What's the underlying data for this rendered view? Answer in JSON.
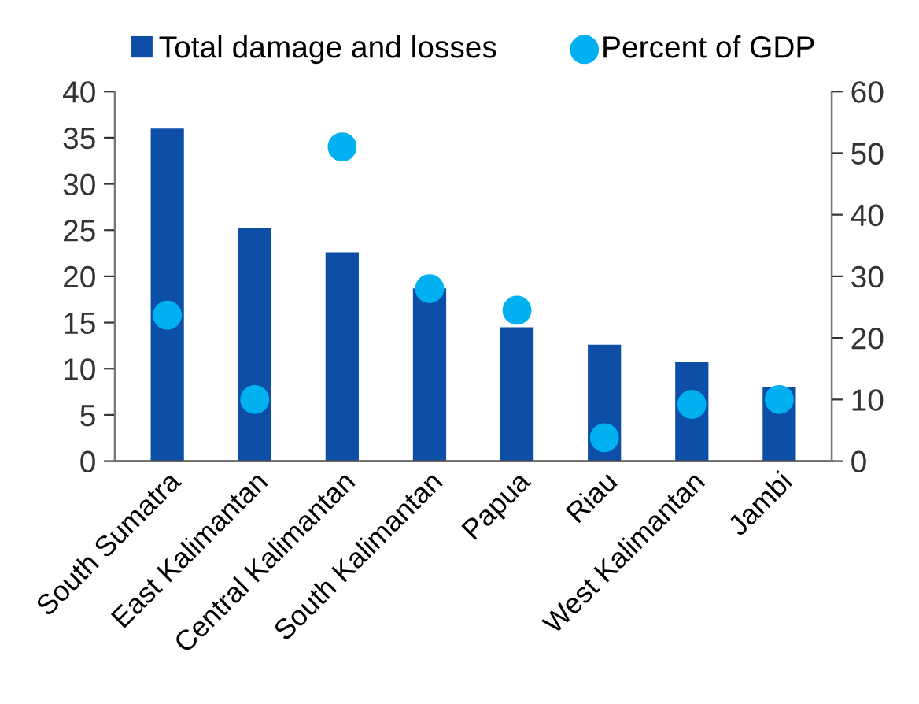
{
  "chart_data": {
    "type": "bar",
    "categories": [
      "South Sumatra",
      "East Kalimantan",
      "Central Kalimantan",
      "South Kalimantan",
      "Papua",
      "Riau",
      "West Kalimantan",
      "Jambi"
    ],
    "series": [
      {
        "name": "Total damage and losses",
        "color": "#0d4ea6",
        "values": [
          36,
          25.2,
          22.6,
          18.7,
          14.5,
          12.6,
          10.7,
          8.0
        ]
      },
      {
        "name": "Percent of GDP",
        "color": "#00b0f0",
        "type": "scatter",
        "axis": "y2",
        "values": [
          23.7,
          10,
          51,
          28,
          24.5,
          3.8,
          9.2,
          10
        ]
      }
    ],
    "ylim": [
      0,
      40
    ],
    "yticks": [
      0,
      5,
      10,
      15,
      20,
      25,
      30,
      35,
      40
    ],
    "y2lim": [
      0,
      60
    ],
    "y2ticks": [
      0,
      10,
      20,
      30,
      40,
      50,
      60
    ],
    "legend": "top",
    "grid": false,
    "marker": "circle"
  }
}
